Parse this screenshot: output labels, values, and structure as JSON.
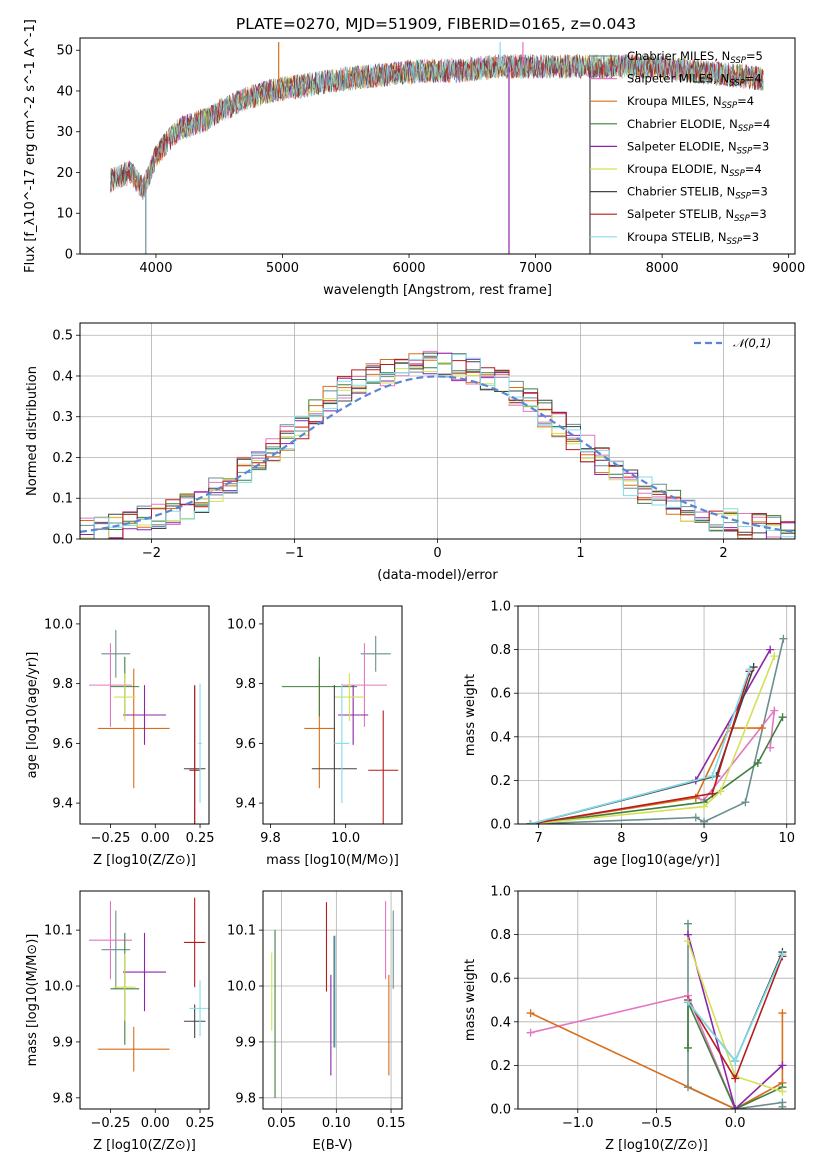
{
  "figure": {
    "title": "PLATE=0270, MJD=51909, FIBERID=0165, z=0.043"
  },
  "models": [
    {
      "label": "Chabrier MILES, N",
      "sub": "SSP",
      "suffix": "=5",
      "color": "#6b8f8f"
    },
    {
      "label": "Salpeter MILES, N",
      "sub": "SSP",
      "suffix": "=4",
      "color": "#e377c2"
    },
    {
      "label": "Kroupa MILES, N",
      "sub": "SSP",
      "suffix": "=4",
      "color": "#d96f1a"
    },
    {
      "label": "Chabrier ELODIE, N",
      "sub": "SSP",
      "suffix": "=4",
      "color": "#3f7f3f"
    },
    {
      "label": "Salpeter ELODIE, N",
      "sub": "SSP",
      "suffix": "=3",
      "color": "#8e24aa"
    },
    {
      "label": "Kroupa ELODIE, N",
      "sub": "SSP",
      "suffix": "=4",
      "color": "#d4e157"
    },
    {
      "label": "Chabrier STELIB, N",
      "sub": "SSP",
      "suffix": "=3",
      "color": "#444444"
    },
    {
      "label": "Salpeter STELIB, N",
      "sub": "SSP",
      "suffix": "=3",
      "color": "#b71c1c"
    },
    {
      "label": "Kroupa STELIB, N",
      "sub": "SSP",
      "suffix": "=3",
      "color": "#80deea"
    }
  ],
  "chart_data": [
    {
      "id": "spectrum",
      "type": "line",
      "xlabel": "wavelength [Angstrom, rest frame]",
      "ylabel": "Flux [f_λ10^-17 erg cm^-2 s^-1 A^-1]",
      "xlim": [
        3400,
        9050
      ],
      "ylim": [
        0,
        53
      ],
      "xticks": [
        4000,
        5000,
        6000,
        7000,
        8000,
        9000
      ],
      "yticks": [
        0,
        10,
        20,
        30,
        40,
        50
      ],
      "grid": false,
      "legend": "top-right",
      "continuum": {
        "x": [
          3640,
          3700,
          3800,
          3900,
          4000,
          4100,
          4200,
          4300,
          4400,
          4500,
          4700,
          4900,
          5100,
          5300,
          5500,
          5800,
          6100,
          6400,
          6700,
          7000,
          7300,
          7600,
          7900,
          8200,
          8500,
          8800
        ],
        "y": [
          18,
          19,
          20,
          16,
          24,
          28,
          31,
          32,
          33,
          35,
          38,
          40,
          41,
          42,
          43,
          44,
          45,
          45,
          46,
          46,
          46,
          46,
          46,
          45,
          44,
          43
        ]
      },
      "spikes": [
        {
          "x": 3920,
          "y": 0
        },
        {
          "x": 4970,
          "y": 52
        },
        {
          "x": 6790,
          "y": 0
        },
        {
          "x": 7430,
          "y": 0
        },
        {
          "x": 6720,
          "y": 52
        },
        {
          "x": 6900,
          "y": 52
        }
      ]
    },
    {
      "id": "residuals",
      "type": "bar",
      "xlabel": "(data-model)/error",
      "ylabel": "Normed distribution",
      "xlim": [
        -2.5,
        2.5
      ],
      "ylim": [
        0,
        0.53
      ],
      "xticks": [
        -2,
        -1,
        0,
        1,
        2
      ],
      "xtick_labels": [
        "−2",
        "−1",
        "0",
        "1",
        "2"
      ],
      "yticks": [
        0.0,
        0.1,
        0.2,
        0.3,
        0.4,
        0.5
      ],
      "ytick_labels": [
        "0.0",
        "0.1",
        "0.2",
        "0.3",
        "0.4",
        "0.5"
      ],
      "grid": true,
      "legend": "top-right",
      "reference_curve": {
        "name": "𝒩(0,1)",
        "color": "#5b86d6"
      },
      "bin_edges": [
        -2.5,
        -2.4,
        -2.3,
        -2.2,
        -2.1,
        -2.0,
        -1.9,
        -1.8,
        -1.7,
        -1.6,
        -1.5,
        -1.4,
        -1.3,
        -1.2,
        -1.1,
        -1.0,
        -0.9,
        -0.8,
        -0.7,
        -0.6,
        -0.5,
        -0.4,
        -0.3,
        -0.2,
        -0.1,
        0.0,
        0.1,
        0.2,
        0.3,
        0.4,
        0.5,
        0.6,
        0.7,
        0.8,
        0.9,
        1.0,
        1.1,
        1.2,
        1.3,
        1.4,
        1.5,
        1.6,
        1.7,
        1.8,
        1.9,
        2.0,
        2.1,
        2.2,
        2.3,
        2.4,
        2.5
      ],
      "density": [
        0.02,
        0.025,
        0.03,
        0.04,
        0.05,
        0.055,
        0.065,
        0.08,
        0.1,
        0.12,
        0.14,
        0.17,
        0.19,
        0.22,
        0.25,
        0.28,
        0.31,
        0.34,
        0.37,
        0.39,
        0.4,
        0.41,
        0.42,
        0.43,
        0.44,
        0.43,
        0.42,
        0.41,
        0.4,
        0.38,
        0.36,
        0.34,
        0.31,
        0.28,
        0.25,
        0.22,
        0.19,
        0.17,
        0.14,
        0.12,
        0.1,
        0.085,
        0.07,
        0.06,
        0.05,
        0.04,
        0.035,
        0.03,
        0.025,
        0.02
      ]
    },
    {
      "id": "age-vs-Z",
      "type": "scatter",
      "xlabel": "Z [log10(Z/Z⊙)]",
      "ylabel": "age [log10(age/yr)]",
      "xlim": [
        -0.42,
        0.3
      ],
      "ylim": [
        9.33,
        10.06
      ],
      "xticks": [
        -0.25,
        0.0,
        0.25
      ],
      "xtick_labels": [
        "−0.25",
        "0.00",
        "0.25"
      ],
      "yticks": [
        9.4,
        9.6,
        9.8,
        10.0
      ],
      "ytick_labels": [
        "9.4",
        "9.6",
        "9.8",
        "10.0"
      ],
      "grid": false,
      "points": [
        {
          "model": 0,
          "x": -0.22,
          "y": 9.9,
          "xerr": 0.08,
          "yerr": 0.08
        },
        {
          "model": 1,
          "x": -0.25,
          "y": 9.795,
          "xerr": 0.12,
          "yerr": 0.14
        },
        {
          "model": 2,
          "x": -0.12,
          "y": 9.65,
          "xerr": 0.2,
          "yerr": 0.2
        },
        {
          "model": 3,
          "x": -0.17,
          "y": 9.79,
          "xerr": 0.08,
          "yerr": 0.1
        },
        {
          "model": 4,
          "x": -0.06,
          "y": 9.695,
          "xerr": 0.12,
          "yerr": 0.1
        },
        {
          "model": 5,
          "x": -0.17,
          "y": 9.755,
          "xerr": 0.06,
          "yerr": 0.08
        },
        {
          "model": 6,
          "x": 0.22,
          "y": 9.515,
          "xerr": 0.06,
          "yerr": 0.28
        },
        {
          "model": 7,
          "x": 0.22,
          "y": 9.51,
          "xerr": 0.03,
          "yerr": 0.28
        },
        {
          "model": 8,
          "x": 0.25,
          "y": 9.6,
          "xerr": 0.01,
          "yerr": 0.2
        }
      ]
    },
    {
      "id": "age-vs-mass",
      "type": "scatter",
      "xlabel": "mass [log10(M/M⊙)]",
      "ylabel": "",
      "xlim": [
        9.78,
        10.15
      ],
      "ylim": [
        9.33,
        10.06
      ],
      "xticks": [
        9.8,
        10.0
      ],
      "xtick_labels": [
        "9.8",
        "10.0"
      ],
      "yticks": [
        9.4,
        9.6,
        9.8,
        10.0
      ],
      "ytick_labels": [
        "9.4",
        "9.6",
        "9.8",
        "10.0"
      ],
      "grid": false,
      "points": [
        {
          "model": 0,
          "x": 10.08,
          "y": 9.9,
          "xerr": 0.04,
          "yerr": 0.06
        },
        {
          "model": 1,
          "x": 10.05,
          "y": 9.795,
          "xerr": 0.06,
          "yerr": 0.14
        },
        {
          "model": 2,
          "x": 9.93,
          "y": 9.65,
          "xerr": 0.04,
          "yerr": 0.2
        },
        {
          "model": 3,
          "x": 9.93,
          "y": 9.79,
          "xerr": 0.1,
          "yerr": 0.1
        },
        {
          "model": 4,
          "x": 10.02,
          "y": 9.695,
          "xerr": 0.04,
          "yerr": 0.1
        },
        {
          "model": 5,
          "x": 10.01,
          "y": 9.755,
          "xerr": 0.04,
          "yerr": 0.08
        },
        {
          "model": 6,
          "x": 9.97,
          "y": 9.515,
          "xerr": 0.06,
          "yerr": 0.28
        },
        {
          "model": 7,
          "x": 10.1,
          "y": 9.51,
          "xerr": 0.04,
          "yerr": 0.2
        },
        {
          "model": 8,
          "x": 9.99,
          "y": 9.6,
          "xerr": 0.02,
          "yerr": 0.2
        }
      ]
    },
    {
      "id": "mass-weight-vs-age",
      "type": "line",
      "xlabel": "age [log10(age/yr)]",
      "ylabel": "mass weight",
      "xlim": [
        6.75,
        10.1
      ],
      "ylim": [
        0,
        1.0
      ],
      "xticks": [
        7,
        8,
        9,
        10
      ],
      "xtick_labels": [
        "7",
        "8",
        "9",
        "10"
      ],
      "yticks": [
        0.0,
        0.2,
        0.4,
        0.6,
        0.8,
        1.0
      ],
      "ytick_labels": [
        "0.0",
        "0.2",
        "0.4",
        "0.6",
        "0.8",
        "1.0"
      ],
      "grid": true,
      "series": [
        {
          "model": 0,
          "x": [
            6.9,
            8.9,
            9.0,
            9.5,
            9.96
          ],
          "y": [
            0.0,
            0.03,
            0.01,
            0.1,
            0.85
          ]
        },
        {
          "model": 1,
          "x": [
            8.9,
            9.0,
            9.85,
            9.8
          ],
          "y": [
            0.12,
            0.11,
            0.52,
            0.35
          ]
        },
        {
          "model": 2,
          "x": [
            6.9,
            8.9,
            9.3,
            9.7
          ],
          "y": [
            0.0,
            0.12,
            0.44,
            0.44
          ]
        },
        {
          "model": 3,
          "x": [
            6.9,
            9.0,
            9.65,
            9.95
          ],
          "y": [
            0.0,
            0.1,
            0.28,
            0.49
          ]
        },
        {
          "model": 4,
          "x": [
            6.9,
            8.9,
            9.8
          ],
          "y": [
            0.0,
            0.2,
            0.8
          ]
        },
        {
          "model": 5,
          "x": [
            6.9,
            9.0,
            9.2,
            9.85
          ],
          "y": [
            0.0,
            0.08,
            0.15,
            0.77
          ]
        },
        {
          "model": 6,
          "x": [
            6.9,
            9.15,
            9.6
          ],
          "y": [
            0.0,
            0.22,
            0.72
          ]
        },
        {
          "model": 7,
          "x": [
            6.9,
            9.1,
            9.55
          ],
          "y": [
            0.0,
            0.14,
            0.7
          ]
        },
        {
          "model": 8,
          "x": [
            6.9,
            9.1,
            9.55
          ],
          "y": [
            0.0,
            0.22,
            0.71
          ]
        }
      ]
    },
    {
      "id": "mass-vs-Z",
      "type": "scatter",
      "xlabel": "Z [log10(Z/Z⊙)]",
      "ylabel": "mass [log10(M/M⊙)]",
      "xlim": [
        -0.42,
        0.3
      ],
      "ylim": [
        9.78,
        10.17
      ],
      "xticks": [
        -0.25,
        0.0,
        0.25
      ],
      "xtick_labels": [
        "−0.25",
        "0.00",
        "0.25"
      ],
      "yticks": [
        9.8,
        9.9,
        10.0,
        10.1
      ],
      "ytick_labels": [
        "9.8",
        "9.9",
        "10.0",
        "10.1"
      ],
      "grid": false,
      "points": [
        {
          "model": 0,
          "x": -0.22,
          "y": 10.065,
          "xerr": 0.08,
          "yerr": 0.07
        },
        {
          "model": 1,
          "x": -0.25,
          "y": 10.082,
          "xerr": 0.12,
          "yerr": 0.07
        },
        {
          "model": 2,
          "x": -0.12,
          "y": 9.887,
          "xerr": 0.2,
          "yerr": 0.04
        },
        {
          "model": 3,
          "x": -0.17,
          "y": 9.995,
          "xerr": 0.08,
          "yerr": 0.1
        },
        {
          "model": 4,
          "x": -0.06,
          "y": 10.025,
          "xerr": 0.12,
          "yerr": 0.07
        },
        {
          "model": 5,
          "x": -0.17,
          "y": 9.998,
          "xerr": 0.06,
          "yerr": 0.06
        },
        {
          "model": 6,
          "x": 0.22,
          "y": 9.937,
          "xerr": 0.06,
          "yerr": 0.03
        },
        {
          "model": 7,
          "x": 0.22,
          "y": 10.078,
          "xerr": 0.06,
          "yerr": 0.08
        },
        {
          "model": 8,
          "x": 0.25,
          "y": 9.96,
          "xerr": 0.06,
          "yerr": 0.05
        }
      ]
    },
    {
      "id": "mass-vs-EBV",
      "type": "scatter",
      "xlabel": "E(B-V)",
      "ylabel": "",
      "xlim": [
        0.033,
        0.16
      ],
      "ylim": [
        9.78,
        10.17
      ],
      "xticks": [
        0.05,
        0.1,
        0.15
      ],
      "xtick_labels": [
        "0.05",
        "0.10",
        "0.15"
      ],
      "yticks": [
        9.8,
        9.9,
        10.0,
        10.1
      ],
      "ytick_labels": [
        "9.8",
        "9.9",
        "10.0",
        "10.1"
      ],
      "grid": true,
      "points": [
        {
          "model": 0,
          "x": 0.152,
          "y": 10.065,
          "xerr": 0,
          "yerr": 0.07
        },
        {
          "model": 1,
          "x": 0.145,
          "y": 10.082,
          "xerr": 0,
          "yerr": 0.07
        },
        {
          "model": 2,
          "x": 0.148,
          "y": 9.93,
          "xerr": 0,
          "yerr": 0.09
        },
        {
          "model": 3,
          "x": 0.044,
          "y": 9.95,
          "xerr": 0,
          "yerr": 0.15
        },
        {
          "model": 4,
          "x": 0.095,
          "y": 9.93,
          "xerr": 0,
          "yerr": 0.09
        },
        {
          "model": 5,
          "x": 0.041,
          "y": 9.99,
          "xerr": 0,
          "yerr": 0.07
        },
        {
          "model": 6,
          "x": 0.098,
          "y": 9.99,
          "xerr": 0,
          "yerr": 0.1
        },
        {
          "model": 7,
          "x": 0.091,
          "y": 10.07,
          "xerr": 0,
          "yerr": 0.08
        },
        {
          "model": 8,
          "x": 0.099,
          "y": 9.99,
          "xerr": 0,
          "yerr": 0.1
        }
      ]
    },
    {
      "id": "mass-weight-vs-Z",
      "type": "line",
      "xlabel": "Z [log10(Z/Z⊙)]",
      "ylabel": "mass weight",
      "xlim": [
        -1.38,
        0.38
      ],
      "ylim": [
        0,
        1.0
      ],
      "xticks": [
        -1.0,
        -0.5,
        0.0
      ],
      "xtick_labels": [
        "−1.0",
        "−0.5",
        "0.0"
      ],
      "yticks": [
        0.0,
        0.2,
        0.4,
        0.6,
        0.8,
        1.0
      ],
      "ytick_labels": [
        "0.0",
        "0.2",
        "0.4",
        "0.6",
        "0.8",
        "1.0"
      ],
      "grid": true,
      "series": [
        {
          "model": 0,
          "x": [
            -0.3,
            -0.3,
            0.0,
            0.3,
            0.3
          ],
          "y": [
            0.85,
            0.1,
            0.0,
            0.03,
            0.01
          ]
        },
        {
          "model": 1,
          "x": [
            -1.3,
            -0.3,
            0.0,
            0.3
          ],
          "y": [
            0.35,
            0.52,
            0.0,
            0.12
          ]
        },
        {
          "model": 2,
          "x": [
            -1.3,
            0.0,
            0.3,
            0.3
          ],
          "y": [
            0.44,
            0.0,
            0.12,
            0.44
          ]
        },
        {
          "model": 3,
          "x": [
            -0.3,
            -0.3,
            0.0,
            0.3
          ],
          "y": [
            0.28,
            0.49,
            0.0,
            0.1
          ]
        },
        {
          "model": 4,
          "x": [
            -0.3,
            0.0,
            0.3
          ],
          "y": [
            0.8,
            0.0,
            0.2
          ]
        },
        {
          "model": 5,
          "x": [
            -0.3,
            0.0,
            0.3
          ],
          "y": [
            0.77,
            0.15,
            0.08
          ]
        },
        {
          "model": 6,
          "x": [
            -0.3,
            0.0,
            0.3
          ],
          "y": [
            0.49,
            0.22,
            0.72
          ]
        },
        {
          "model": 7,
          "x": [
            -0.3,
            0.0,
            0.3
          ],
          "y": [
            0.5,
            0.14,
            0.7
          ]
        },
        {
          "model": 8,
          "x": [
            -0.3,
            0.0,
            0.3
          ],
          "y": [
            0.49,
            0.22,
            0.71
          ]
        }
      ]
    }
  ]
}
